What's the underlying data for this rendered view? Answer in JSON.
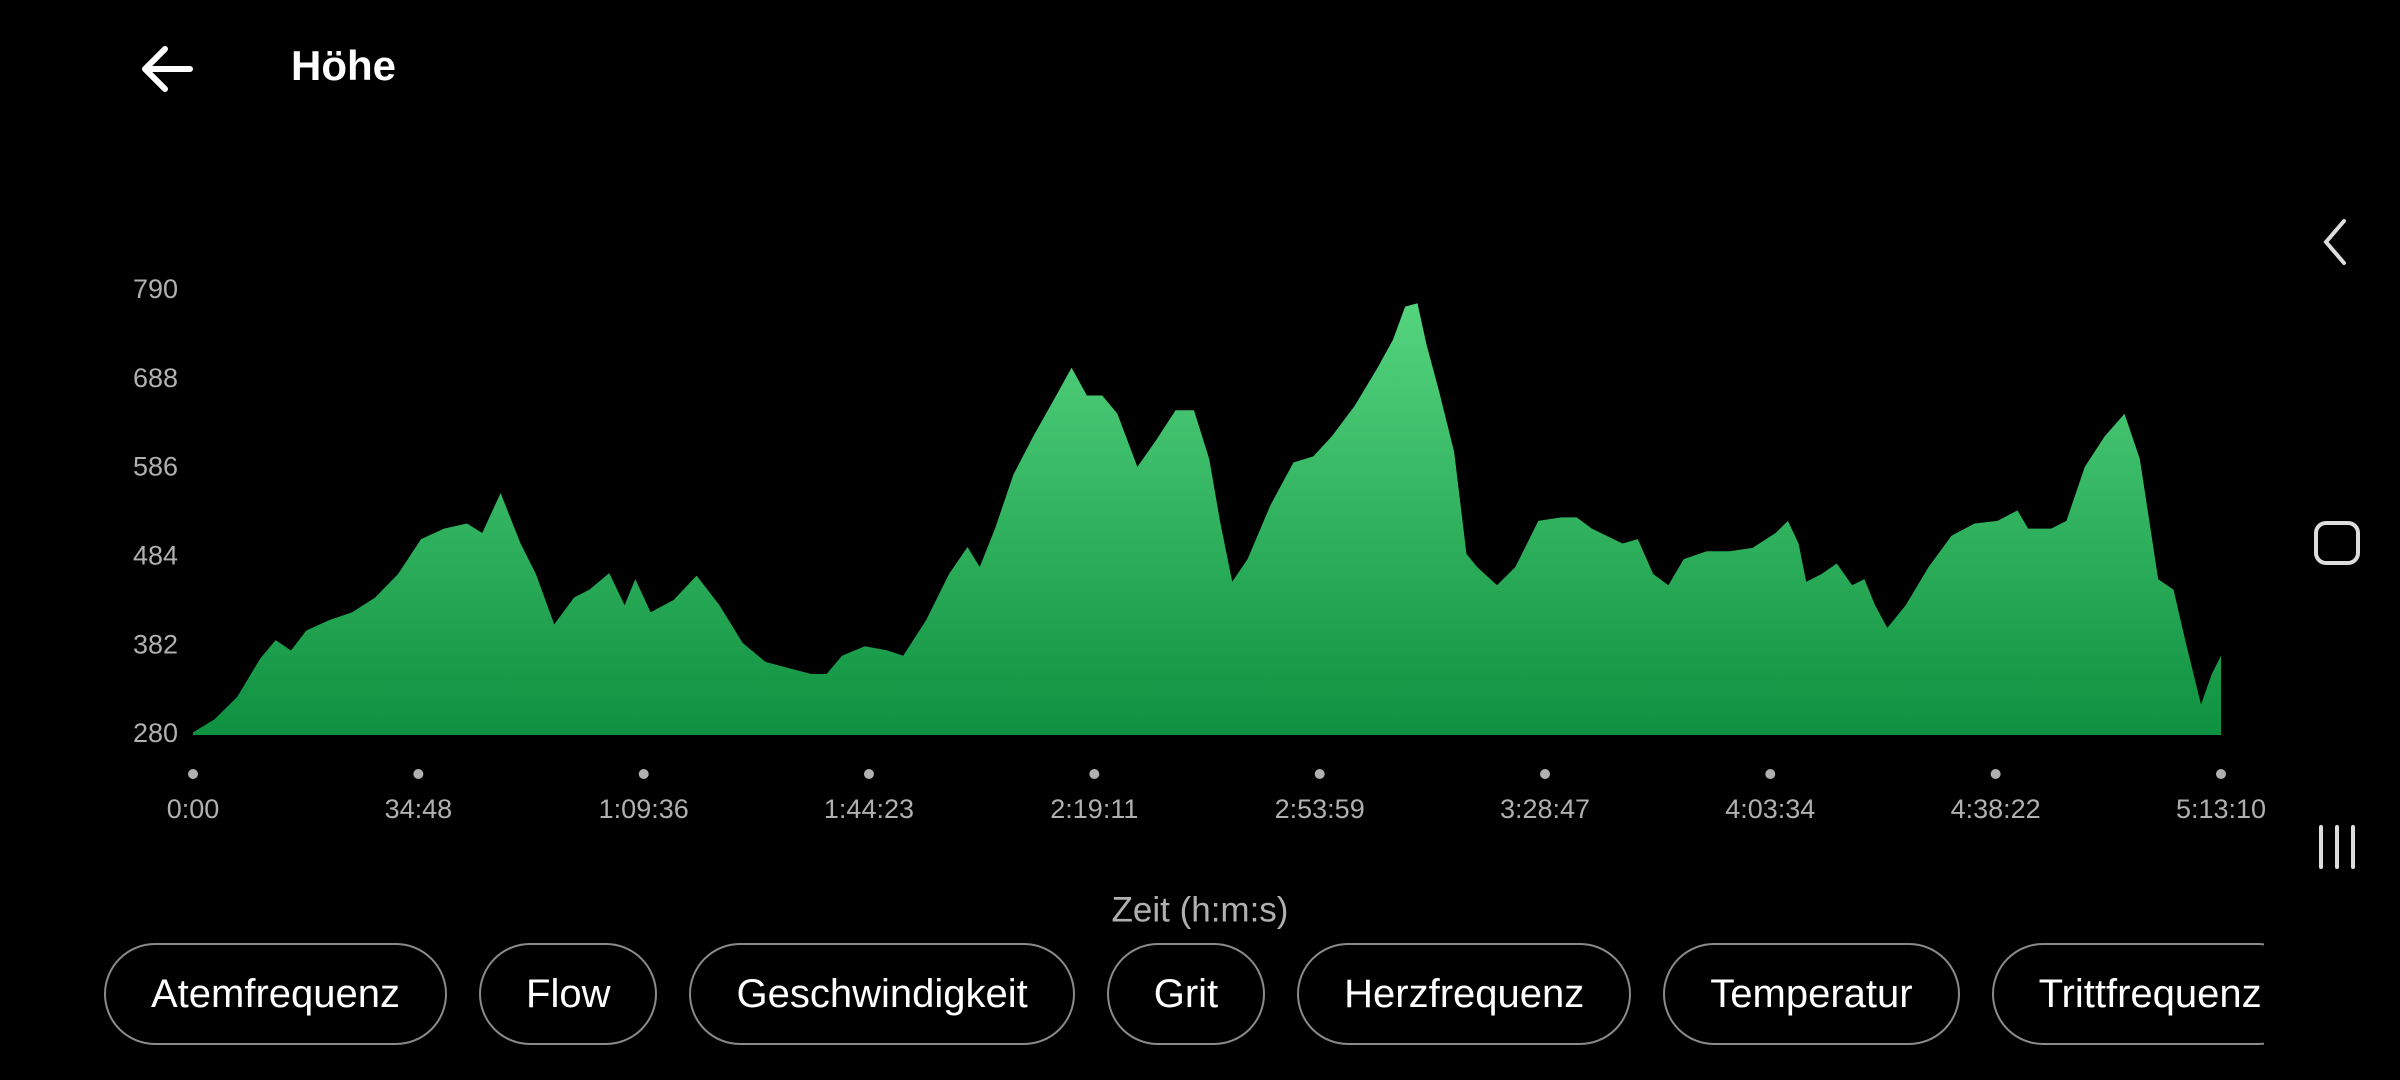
{
  "header": {
    "title": "Höhe"
  },
  "chart_data": {
    "type": "area",
    "x_label": "Zeit (h:m:s)",
    "x": [
      0,
      199,
      411,
      624,
      766,
      908,
      1050,
      1262,
      1475,
      1688,
      1900,
      2113,
      2326,
      2538,
      2680,
      2850,
      3035,
      3177,
      3347,
      3531,
      3673,
      3857,
      3999,
      4098,
      4240,
      4453,
      4666,
      4878,
      5091,
      5304,
      5516,
      5729,
      5871,
      6013,
      6225,
      6438,
      6580,
      6793,
      7005,
      7176,
      7289,
      7431,
      7601,
      7785,
      7998,
      8140,
      8282,
      8424,
      8565,
      8750,
      8920,
      9104,
      9274,
      9416,
      9515,
      9629,
      9771,
      9983,
      10196,
      10380,
      10551,
      10763,
      10976,
      11118,
      11231,
      11345,
      11430,
      11543,
      11685,
      11799,
      11898,
      12082,
      12252,
      12465,
      12678,
      12820,
      12961,
      13245,
      13387,
      13529,
      13670,
      13812,
      14025,
      14238,
      14450,
      14663,
      14777,
      14876,
      14947,
      15089,
      15230,
      15372,
      15486,
      15585,
      15698,
      15869,
      16081,
      16294,
      16507,
      16719,
      16904,
      17003,
      17216,
      17358,
      17528,
      17712,
      17896,
      18038,
      18208,
      18350,
      18464,
      18605,
      18705,
      18790
    ],
    "values": [
      283,
      298,
      324,
      368,
      389,
      377,
      400,
      412,
      421,
      438,
      465,
      505,
      517,
      523,
      512,
      558,
      500,
      465,
      407,
      438,
      447,
      466,
      429,
      459,
      421,
      435,
      463,
      429,
      386,
      364,
      357,
      350,
      350,
      371,
      382,
      377,
      371,
      412,
      465,
      496,
      473,
      517,
      579,
      623,
      670,
      702,
      670,
      670,
      649,
      588,
      618,
      653,
      653,
      597,
      526,
      456,
      482,
      544,
      593,
      600,
      623,
      658,
      702,
      734,
      772,
      776,
      728,
      676,
      605,
      488,
      473,
      452,
      473,
      526,
      530,
      530,
      517,
      500,
      505,
      465,
      452,
      482,
      491,
      491,
      495,
      512,
      526,
      500,
      456,
      465,
      477,
      452,
      459,
      429,
      403,
      429,
      473,
      509,
      523,
      526,
      538,
      517,
      517,
      526,
      588,
      623,
      649,
      597,
      459,
      447,
      386,
      315,
      350,
      371
    ],
    "gradient": [
      "#55d47e",
      "#0e9140"
    ],
    "xlim": [
      0,
      18790
    ],
    "ylim": [
      280,
      790
    ],
    "yticks": [
      280,
      382,
      484,
      586,
      688,
      790
    ],
    "xticks": [
      {
        "value": 0,
        "label": "0:00"
      },
      {
        "value": 2088,
        "label": "34:48"
      },
      {
        "value": 4176,
        "label": "1:09:36"
      },
      {
        "value": 6263,
        "label": "1:44:23"
      },
      {
        "value": 8351,
        "label": "2:19:11"
      },
      {
        "value": 10439,
        "label": "2:53:59"
      },
      {
        "value": 12527,
        "label": "3:28:47"
      },
      {
        "value": 14614,
        "label": "4:03:34"
      },
      {
        "value": 16702,
        "label": "4:38:22"
      },
      {
        "value": 18790,
        "label": "5:13:10"
      }
    ]
  },
  "chips": [
    "Atemfrequenz",
    "Flow",
    "Geschwindigkeit",
    "Grit",
    "Herzfrequenz",
    "Temperatur",
    "Trittfrequenz"
  ]
}
